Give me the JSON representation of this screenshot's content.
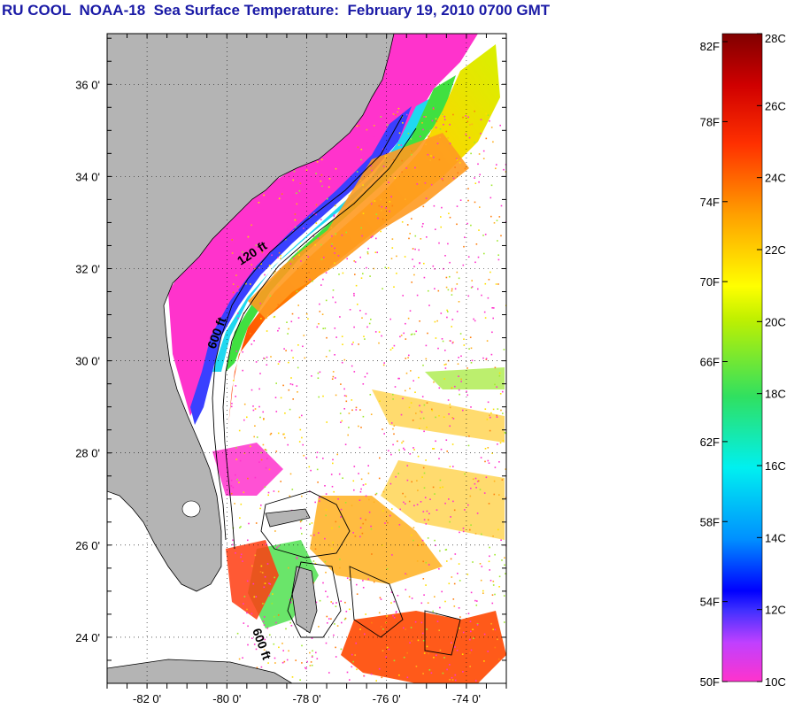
{
  "title": "RU COOL  NOAA-18  Sea Surface Temperature:  February 19, 2010 0700 GMT",
  "map": {
    "lat_ticks": [
      {
        "value": 36,
        "label": "36 0'"
      },
      {
        "value": 34,
        "label": "34 0'"
      },
      {
        "value": 32,
        "label": "32 0'"
      },
      {
        "value": 30,
        "label": "30 0'"
      },
      {
        "value": 28,
        "label": "28 0'"
      },
      {
        "value": 26,
        "label": "26 0'"
      },
      {
        "value": 24,
        "label": "24 0'"
      }
    ],
    "lon_ticks": [
      {
        "value": -82,
        "label": "-82 0'"
      },
      {
        "value": -80,
        "label": "-80 0'"
      },
      {
        "value": -78,
        "label": "-78 0'"
      },
      {
        "value": -76,
        "label": "-76 0'"
      },
      {
        "value": -74,
        "label": "-74 0'"
      }
    ],
    "lat_range": [
      23.0,
      37.1
    ],
    "lon_range": [
      -83.0,
      -73.0
    ],
    "contour_labels": [
      "120 ft",
      "600 ft",
      "600 ft"
    ],
    "land_color": "#b4b4b4"
  },
  "colorbar": {
    "fahrenheit": [
      "82F",
      "78F",
      "74F",
      "70F",
      "66F",
      "62F",
      "58F",
      "54F",
      "50F"
    ],
    "celsius": [
      "28C",
      "26C",
      "24C",
      "22C",
      "20C",
      "18C",
      "16C",
      "14C",
      "12C",
      "10C"
    ],
    "celsius_range": [
      10,
      28
    ]
  }
}
